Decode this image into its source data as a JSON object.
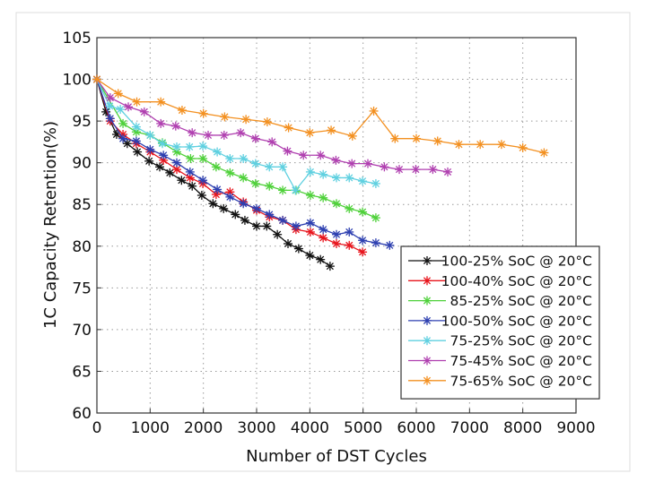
{
  "chart_data": {
    "type": "line",
    "title": "",
    "xlabel": "Number of DST Cycles",
    "ylabel": "1C Capacity Retention(%)",
    "xlim": [
      0,
      9000
    ],
    "ylim": [
      60,
      105
    ],
    "xticks": [
      0,
      1000,
      2000,
      3000,
      4000,
      5000,
      6000,
      7000,
      8000,
      9000
    ],
    "yticks": [
      60,
      65,
      70,
      75,
      80,
      85,
      90,
      95,
      100,
      105
    ],
    "grid": true,
    "legend_position": "bottom-right",
    "marker": "asterisk",
    "series": [
      {
        "name": "100-25% SoC @ 20°C",
        "color": "#111111",
        "points": [
          [
            0,
            100
          ],
          [
            170,
            96.1
          ],
          [
            370,
            93.4
          ],
          [
            570,
            92.3
          ],
          [
            760,
            91.3
          ],
          [
            980,
            90.2
          ],
          [
            1180,
            89.5
          ],
          [
            1370,
            88.8
          ],
          [
            1590,
            87.9
          ],
          [
            1790,
            87.2
          ],
          [
            1970,
            86.1
          ],
          [
            2180,
            85.1
          ],
          [
            2380,
            84.5
          ],
          [
            2600,
            83.8
          ],
          [
            2780,
            83.1
          ],
          [
            3000,
            82.4
          ],
          [
            3190,
            82.4
          ],
          [
            3390,
            81.4
          ],
          [
            3590,
            80.3
          ],
          [
            3790,
            79.7
          ],
          [
            4000,
            78.9
          ],
          [
            4200,
            78.4
          ],
          [
            4380,
            77.6
          ]
        ]
      },
      {
        "name": "100-40% SoC @ 20°C",
        "color": "#e8141c",
        "points": [
          [
            0,
            100
          ],
          [
            250,
            95.0
          ],
          [
            490,
            93.4
          ],
          [
            740,
            92.3
          ],
          [
            1000,
            91.3
          ],
          [
            1250,
            90.3
          ],
          [
            1500,
            89.2
          ],
          [
            1750,
            88.2
          ],
          [
            1990,
            87.5
          ],
          [
            2240,
            86.2
          ],
          [
            2500,
            86.5
          ],
          [
            2750,
            85.3
          ],
          [
            3000,
            84.3
          ],
          [
            3240,
            83.5
          ],
          [
            3490,
            83.1
          ],
          [
            3740,
            82.0
          ],
          [
            4010,
            81.7
          ],
          [
            4250,
            81.0
          ],
          [
            4500,
            80.3
          ],
          [
            4740,
            80.1
          ],
          [
            4990,
            79.3
          ]
        ]
      },
      {
        "name": "85-25% SoC @ 20°C",
        "color": "#4fd13a",
        "points": [
          [
            0,
            100
          ],
          [
            490,
            94.7
          ],
          [
            740,
            93.7
          ],
          [
            1000,
            93.3
          ],
          [
            1230,
            92.4
          ],
          [
            1500,
            91.3
          ],
          [
            1760,
            90.5
          ],
          [
            1990,
            90.5
          ],
          [
            2240,
            89.5
          ],
          [
            2500,
            88.8
          ],
          [
            2750,
            88.2
          ],
          [
            2980,
            87.5
          ],
          [
            3240,
            87.2
          ],
          [
            3490,
            86.7
          ],
          [
            3740,
            86.7
          ],
          [
            4010,
            86.1
          ],
          [
            4250,
            85.8
          ],
          [
            4500,
            85.1
          ],
          [
            4740,
            84.5
          ],
          [
            4990,
            84.1
          ],
          [
            5240,
            83.4
          ]
        ]
      },
      {
        "name": "100-50% SoC @ 20°C",
        "color": "#2d3fb0",
        "points": [
          [
            0,
            100
          ],
          [
            250,
            95.3
          ],
          [
            490,
            92.9
          ],
          [
            740,
            92.6
          ],
          [
            1000,
            91.6
          ],
          [
            1250,
            90.9
          ],
          [
            1500,
            90.0
          ],
          [
            1750,
            88.9
          ],
          [
            1990,
            87.9
          ],
          [
            2260,
            86.8
          ],
          [
            2500,
            85.9
          ],
          [
            2750,
            85.1
          ],
          [
            3000,
            84.5
          ],
          [
            3240,
            83.8
          ],
          [
            3490,
            83.1
          ],
          [
            3740,
            82.4
          ],
          [
            4010,
            82.8
          ],
          [
            4250,
            82.0
          ],
          [
            4500,
            81.4
          ],
          [
            4740,
            81.7
          ],
          [
            4990,
            80.7
          ],
          [
            5240,
            80.4
          ],
          [
            5500,
            80.1
          ]
        ]
      },
      {
        "name": "75-25% SoC @ 20°C",
        "color": "#5fd0e0",
        "points": [
          [
            0,
            100
          ],
          [
            240,
            96.8
          ],
          [
            440,
            96.4
          ],
          [
            740,
            94.3
          ],
          [
            1000,
            93.3
          ],
          [
            1230,
            92.3
          ],
          [
            1500,
            91.9
          ],
          [
            1740,
            91.9
          ],
          [
            1990,
            92.0
          ],
          [
            2260,
            91.3
          ],
          [
            2500,
            90.5
          ],
          [
            2750,
            90.5
          ],
          [
            2980,
            89.9
          ],
          [
            3240,
            89.5
          ],
          [
            3490,
            89.5
          ],
          [
            3730,
            86.7
          ],
          [
            4010,
            88.9
          ],
          [
            4250,
            88.6
          ],
          [
            4500,
            88.2
          ],
          [
            4740,
            88.2
          ],
          [
            4990,
            87.8
          ],
          [
            5240,
            87.5
          ]
        ]
      },
      {
        "name": "75-45% SoC @ 20°C",
        "color": "#b040b0",
        "points": [
          [
            0,
            100
          ],
          [
            250,
            97.8
          ],
          [
            590,
            96.7
          ],
          [
            890,
            96.1
          ],
          [
            1200,
            94.7
          ],
          [
            1480,
            94.4
          ],
          [
            1790,
            93.6
          ],
          [
            2090,
            93.3
          ],
          [
            2390,
            93.3
          ],
          [
            2700,
            93.6
          ],
          [
            2980,
            92.9
          ],
          [
            3290,
            92.5
          ],
          [
            3580,
            91.4
          ],
          [
            3880,
            90.9
          ],
          [
            4200,
            90.9
          ],
          [
            4490,
            90.3
          ],
          [
            4790,
            89.9
          ],
          [
            5090,
            89.9
          ],
          [
            5400,
            89.5
          ],
          [
            5680,
            89.2
          ],
          [
            5990,
            89.2
          ],
          [
            6310,
            89.2
          ],
          [
            6590,
            88.9
          ]
        ]
      },
      {
        "name": "75-65% SoC @ 20°C",
        "color": "#f39020",
        "points": [
          [
            0,
            100
          ],
          [
            400,
            98.3
          ],
          [
            750,
            97.3
          ],
          [
            1200,
            97.3
          ],
          [
            1600,
            96.3
          ],
          [
            2000,
            95.9
          ],
          [
            2400,
            95.5
          ],
          [
            2800,
            95.2
          ],
          [
            3200,
            94.9
          ],
          [
            3600,
            94.2
          ],
          [
            4000,
            93.6
          ],
          [
            4400,
            93.9
          ],
          [
            4800,
            93.2
          ],
          [
            5200,
            96.2
          ],
          [
            5600,
            92.9
          ],
          [
            6000,
            92.9
          ],
          [
            6400,
            92.6
          ],
          [
            6800,
            92.2
          ],
          [
            7200,
            92.2
          ],
          [
            7600,
            92.2
          ],
          [
            8000,
            91.8
          ],
          [
            8400,
            91.2
          ]
        ]
      }
    ]
  }
}
